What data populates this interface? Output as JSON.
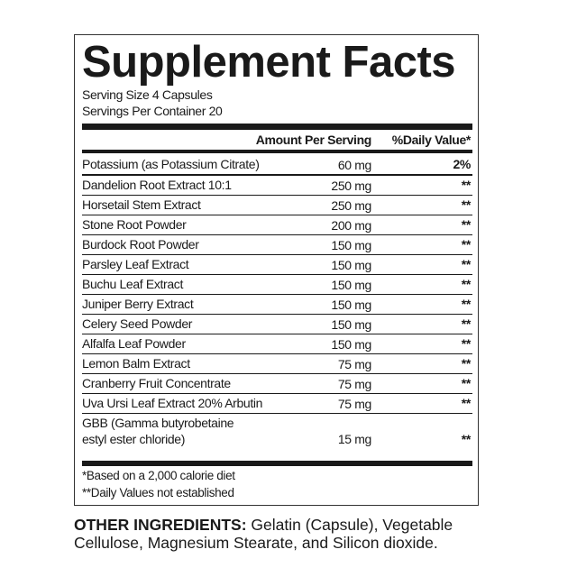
{
  "title": "Supplement Facts",
  "serving_size": "Serving Size 4 Capsules",
  "servings_per_container": "Servings Per Container 20",
  "header": {
    "amount": "Amount Per Serving",
    "daily_value": "%Daily Value*"
  },
  "rows": [
    {
      "name": "Potassium (as Potassium Citrate)",
      "amount": "60 mg",
      "dv": "2%"
    },
    {
      "name": "Dandelion Root Extract 10:1",
      "amount": "250 mg",
      "dv": "**"
    },
    {
      "name": "Horsetail Stem Extract",
      "amount": "250 mg",
      "dv": "**"
    },
    {
      "name": "Stone Root Powder",
      "amount": "200 mg",
      "dv": "**"
    },
    {
      "name": "Burdock Root Powder",
      "amount": "150 mg",
      "dv": "**"
    },
    {
      "name": "Parsley Leaf Extract",
      "amount": "150 mg",
      "dv": "**"
    },
    {
      "name": "Buchu Leaf Extract",
      "amount": "150 mg",
      "dv": "**"
    },
    {
      "name": "Juniper Berry Extract",
      "amount": "150 mg",
      "dv": "**"
    },
    {
      "name": "Celery Seed Powder",
      "amount": "150 mg",
      "dv": "**"
    },
    {
      "name": "Alfalfa Leaf Powder",
      "amount": "150 mg",
      "dv": "**"
    },
    {
      "name": "Lemon Balm Extract",
      "amount": "75 mg",
      "dv": "**"
    },
    {
      "name": "Cranberry Fruit Concentrate",
      "amount": "75 mg",
      "dv": "**"
    },
    {
      "name": "Uva Ursi Leaf Extract 20% Arbutin",
      "amount": "75 mg",
      "dv": "**"
    },
    {
      "name_line1": "GBB (Gamma butyrobetaine",
      "name_line2": "estyl ester chloride)",
      "amount": "15 mg",
      "dv": "**"
    }
  ],
  "footnotes": [
    "*Based on a 2,000 calorie diet",
    "**Daily Values not established"
  ],
  "other_ingredients": {
    "label": "OTHER INGREDIENTS:",
    "text": " Gelatin (Capsule), Vegetable Cellulose, Magnesium Stearate, and Silicon dioxide."
  }
}
